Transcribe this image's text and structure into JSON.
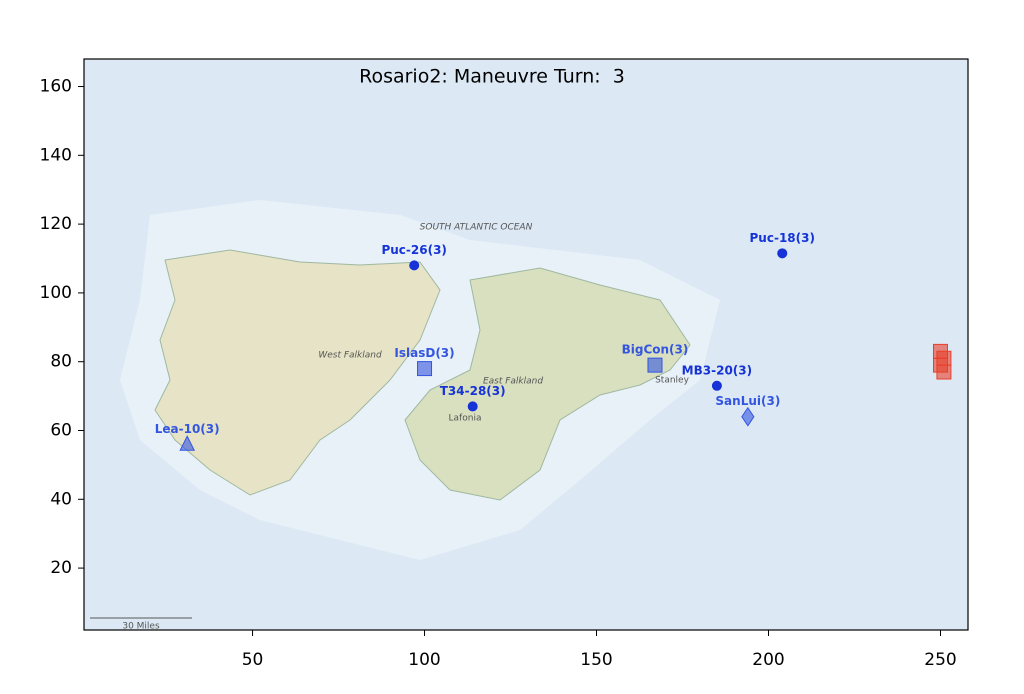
{
  "chart_data": {
    "type": "scatter",
    "title": "Rosario2: Maneuvre Turn:  3",
    "xlim": [
      1,
      258
    ],
    "ylim": [
      2,
      168
    ],
    "xticks": [
      50,
      100,
      150,
      200,
      250
    ],
    "yticks": [
      20,
      40,
      60,
      80,
      100,
      120,
      140,
      160
    ],
    "map_labels": [
      "SOUTH ATLANTIC OCEAN",
      "West Falkland",
      "East Falkland",
      "Lafonia",
      "Stanley",
      "30 Miles"
    ],
    "points": [
      {
        "label": "Puc-26(3)",
        "x": 97,
        "y": 108,
        "marker": "circle",
        "color": "#1533d6"
      },
      {
        "label": "Puc-18(3)",
        "x": 204,
        "y": 111.5,
        "marker": "circle",
        "color": "#1533d6"
      },
      {
        "label": "IslasD(3)",
        "x": 100,
        "y": 78,
        "marker": "square",
        "color": "#3355e0"
      },
      {
        "label": "T34-28(3)",
        "x": 114,
        "y": 67,
        "marker": "circle",
        "color": "#1533d6"
      },
      {
        "label": "BigCon(3)",
        "x": 167,
        "y": 79,
        "marker": "square",
        "color": "#3355e0"
      },
      {
        "label": "MB3-20(3)",
        "x": 185,
        "y": 73,
        "marker": "circle",
        "color": "#1533d6"
      },
      {
        "label": "SanLui(3)",
        "x": 194,
        "y": 64,
        "marker": "diamond",
        "color": "#3355e0"
      },
      {
        "label": "Lea-10(3)",
        "x": 31,
        "y": 56,
        "marker": "triangle",
        "color": "#3355e0"
      },
      {
        "x": 250,
        "y": 83,
        "marker": "square",
        "color": "#e8402a"
      },
      {
        "x": 251,
        "y": 81,
        "marker": "square",
        "color": "#e8402a"
      },
      {
        "x": 250,
        "y": 79,
        "marker": "square",
        "color": "#e8402a"
      },
      {
        "x": 251,
        "y": 77,
        "marker": "square",
        "color": "#e8402a"
      }
    ]
  }
}
